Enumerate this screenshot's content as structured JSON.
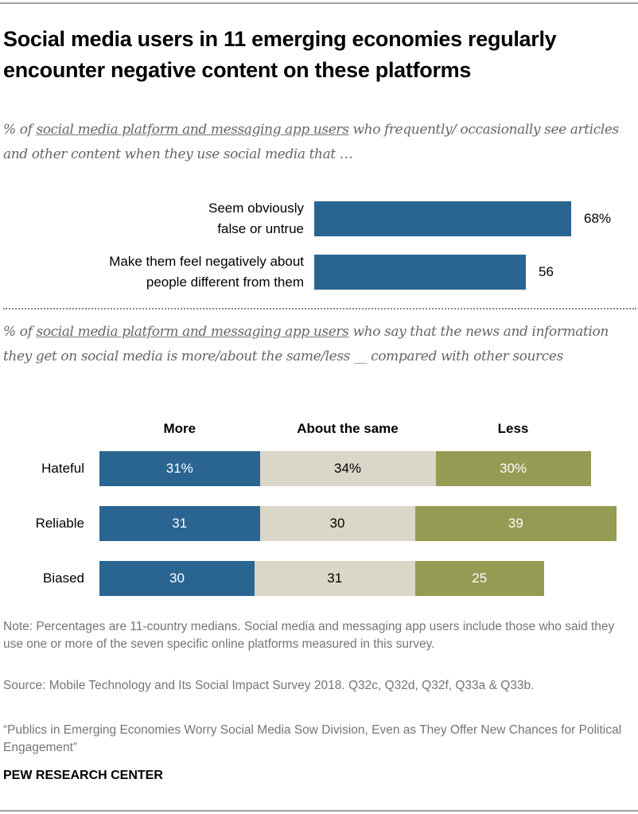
{
  "title": "Social media users in 11 emerging economies regularly encounter negative content on these platforms",
  "section1": {
    "subtitle_prefix": "% of ",
    "subtitle_link": "social media platform and messaging app users",
    "subtitle_suffix": " who frequently/ occasionally see articles and other content when they use social media that …"
  },
  "section2": {
    "subtitle_prefix": "% of ",
    "subtitle_link": "social media platform and messaging app users",
    "subtitle_suffix": " who say that the news and information they get on social media is more/about the same/less __ compared with other sources"
  },
  "colors": {
    "blue": "#2a6592",
    "beige": "#dad7c9",
    "olive": "#959b52"
  },
  "chart_data": [
    {
      "type": "bar",
      "orientation": "horizontal",
      "categories": [
        "Seem obviously false or untrue",
        "Make them feel negatively about people different from them"
      ],
      "category_lines": [
        [
          "Seem obviously",
          "false or untrue"
        ],
        [
          "Make them feel negatively about",
          "people different from them"
        ]
      ],
      "values": [
        68,
        56
      ],
      "value_labels": [
        "68%",
        "56"
      ],
      "xlim": [
        0,
        100
      ],
      "grid": false
    },
    {
      "type": "bar",
      "orientation": "horizontal",
      "stacked": true,
      "categories": [
        "Hateful",
        "Reliable",
        "Biased"
      ],
      "series": [
        {
          "name": "More",
          "values": [
            31,
            31,
            30
          ],
          "labels": [
            "31%",
            "31",
            "30"
          ]
        },
        {
          "name": "About the same",
          "values": [
            34,
            30,
            31
          ],
          "labels": [
            "34%",
            "30",
            "31"
          ]
        },
        {
          "name": "Less",
          "values": [
            30,
            39,
            25
          ],
          "labels": [
            "30%",
            "39",
            "25"
          ]
        }
      ],
      "xlim": [
        0,
        100
      ],
      "legend": "top",
      "grid": false
    }
  ],
  "notes": {
    "note": "Note: Percentages are 11-country medians. Social media and messaging app users include those who said they use one or more of the seven specific online platforms measured in this survey.",
    "source": "Source: Mobile Technology and Its Social Impact Survey 2018. Q32c, Q32d, Q32f, Q33a & Q33b.",
    "report": "“Publics in Emerging Economies Worry Social Media Sow Division, Even as They Offer New Chances for Political Engagement”"
  },
  "brand": "PEW RESEARCH CENTER"
}
